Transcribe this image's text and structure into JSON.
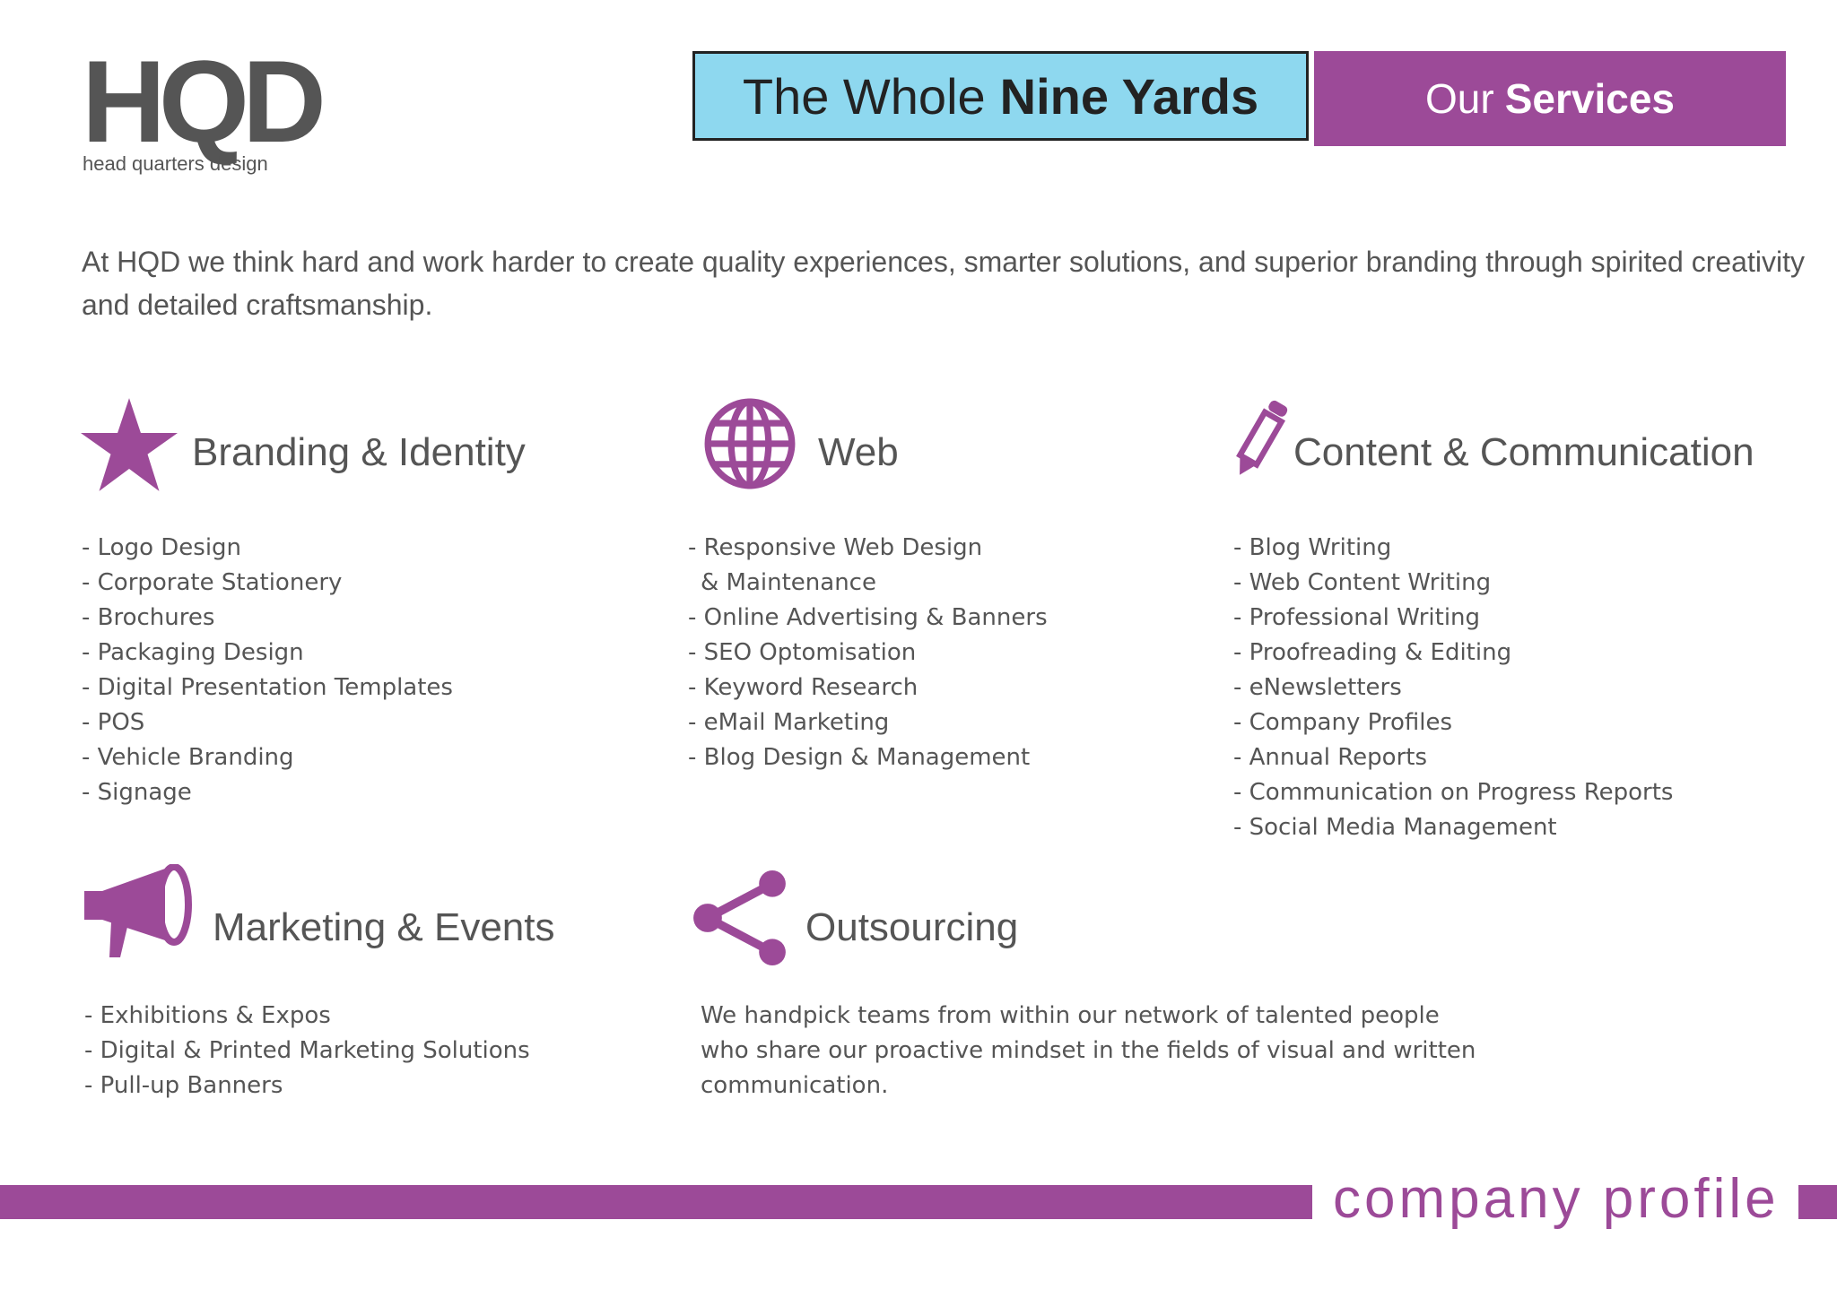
{
  "logo": {
    "mark": "HQD",
    "tagline": "head quarters design"
  },
  "header": {
    "title_regular": "The Whole",
    "title_bold": "Nine Yards",
    "tab_regular": "Our",
    "tab_bold": "Services"
  },
  "intro": "At HQD we think hard and work harder to create quality experiences, smarter solutions, and superior branding through spirited creativity and detailed craftsmanship.",
  "sections": [
    {
      "title": "Branding & Identity",
      "items": [
        "- Logo Design",
        "- Corporate Stationery",
        "- Brochures",
        "- Packaging Design",
        "- Digital Presentation Templates",
        "- POS",
        "- Vehicle Branding",
        "- Signage"
      ]
    },
    {
      "title": "Web",
      "items": [
        "- Responsive Web Design & Maintenance",
        "- Online Advertising & Banners",
        "- SEO Optomisation",
        "- Keyword Research",
        "- eMail Marketing",
        "- Blog Design & Management"
      ]
    },
    {
      "title": "Content & Communication",
      "items": [
        "- Blog Writing",
        "- Web Content Writing",
        "- Professional Writing",
        "- Proofreading & Editing",
        "- eNewsletters",
        "- Company Profiles",
        "- Annual Reports",
        "- Communication on Progress Reports",
        "- Social Media Management"
      ]
    },
    {
      "title": "Marketing & Events",
      "items": [
        "- Exhibitions & Expos",
        "- Digital & Printed Marketing Solutions",
        "- Pull-up Banners"
      ]
    },
    {
      "title": "Outsourcing",
      "text": "We handpick teams from within our network of talented people who share our proactive mindset in the fields of visual and written communication."
    }
  ],
  "footer": "company profile"
}
